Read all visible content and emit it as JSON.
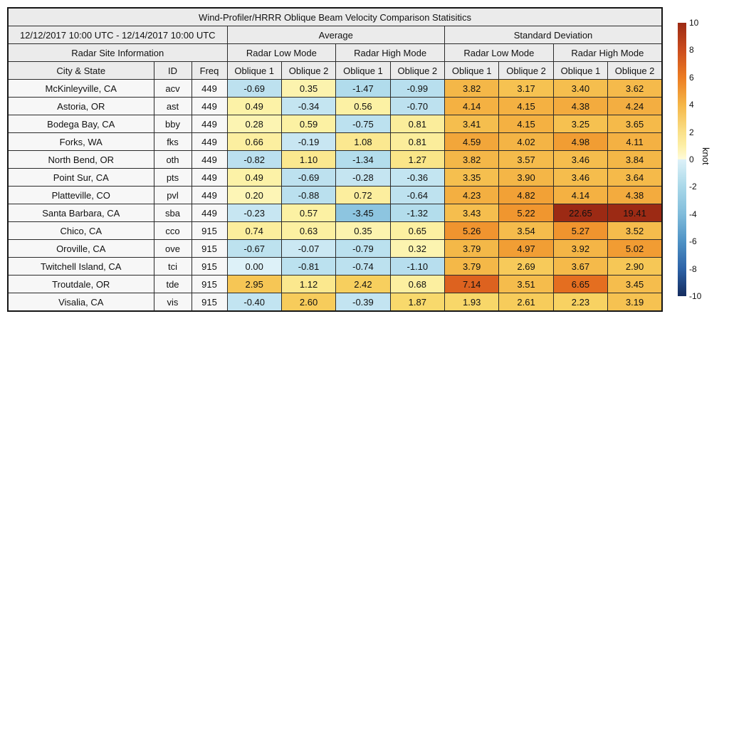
{
  "figure": {
    "title": "Wind-Profiler/HRRR Oblique Beam Velocity Comparison Statisitics",
    "header": {
      "date_range": "12/12/2017 10:00 UTC - 12/14/2017 10:00 UTC",
      "average": "Average",
      "std": "Standard Deviation",
      "site_info": "Radar Site Information",
      "modes": [
        "Radar Low Mode",
        "Radar High Mode",
        "Radar Low Mode",
        "Radar High Mode"
      ],
      "city": "City & State",
      "id": "ID",
      "freq": "Freq",
      "obliques": [
        "Oblique 1",
        "Oblique 2",
        "Oblique 1",
        "Oblique 2",
        "Oblique 1",
        "Oblique 2",
        "Oblique 1",
        "Oblique 2"
      ]
    },
    "rows": [
      {
        "city": "McKinleyville, CA",
        "id": "acv",
        "freq": "449",
        "values": [
          "-0.69",
          "0.35",
          "-1.47",
          "-0.99",
          "3.82",
          "3.17",
          "3.40",
          "3.62"
        ]
      },
      {
        "city": "Astoria, OR",
        "id": "ast",
        "freq": "449",
        "values": [
          "0.49",
          "-0.34",
          "0.56",
          "-0.70",
          "4.14",
          "4.15",
          "4.38",
          "4.24"
        ]
      },
      {
        "city": "Bodega Bay, CA",
        "id": "bby",
        "freq": "449",
        "values": [
          "0.28",
          "0.59",
          "-0.75",
          "0.81",
          "3.41",
          "4.15",
          "3.25",
          "3.65"
        ]
      },
      {
        "city": "Forks, WA",
        "id": "fks",
        "freq": "449",
        "values": [
          "0.66",
          "-0.19",
          "1.08",
          "0.81",
          "4.59",
          "4.02",
          "4.98",
          "4.11"
        ]
      },
      {
        "city": "North Bend, OR",
        "id": "oth",
        "freq": "449",
        "values": [
          "-0.82",
          "1.10",
          "-1.34",
          "1.27",
          "3.82",
          "3.57",
          "3.46",
          "3.84"
        ]
      },
      {
        "city": "Point Sur, CA",
        "id": "pts",
        "freq": "449",
        "values": [
          "0.49",
          "-0.69",
          "-0.28",
          "-0.36",
          "3.35",
          "3.90",
          "3.46",
          "3.64"
        ]
      },
      {
        "city": "Platteville, CO",
        "id": "pvl",
        "freq": "449",
        "values": [
          "0.20",
          "-0.88",
          "0.72",
          "-0.64",
          "4.23",
          "4.82",
          "4.14",
          "4.38"
        ]
      },
      {
        "city": "Santa Barbara, CA",
        "id": "sba",
        "freq": "449",
        "values": [
          "-0.23",
          "0.57",
          "-3.45",
          "-1.32",
          "3.43",
          "5.22",
          "22.65",
          "19.41"
        ]
      },
      {
        "city": "Chico, CA",
        "id": "cco",
        "freq": "915",
        "values": [
          "0.74",
          "0.63",
          "0.35",
          "0.65",
          "5.26",
          "3.54",
          "5.27",
          "3.52"
        ]
      },
      {
        "city": "Oroville, CA",
        "id": "ove",
        "freq": "915",
        "values": [
          "-0.67",
          "-0.07",
          "-0.79",
          "0.32",
          "3.79",
          "4.97",
          "3.92",
          "5.02"
        ]
      },
      {
        "city": "Twitchell Island, CA",
        "id": "tci",
        "freq": "915",
        "values": [
          "0.00",
          "-0.81",
          "-0.74",
          "-1.10",
          "3.79",
          "2.69",
          "3.67",
          "2.90"
        ]
      },
      {
        "city": "Troutdale, OR",
        "id": "tde",
        "freq": "915",
        "values": [
          "2.95",
          "1.12",
          "2.42",
          "0.68",
          "7.14",
          "3.51",
          "6.65",
          "3.45"
        ]
      },
      {
        "city": "Visalia, CA",
        "id": "vis",
        "freq": "915",
        "values": [
          "-0.40",
          "2.60",
          "-0.39",
          "1.87",
          "1.93",
          "2.61",
          "2.23",
          "3.19"
        ]
      }
    ]
  },
  "colorbar": {
    "unit": "knot",
    "ticks": [
      "10",
      "8",
      "6",
      "4",
      "2",
      "0",
      "-2",
      "-4",
      "-6",
      "-8",
      "-10"
    ],
    "min": -10,
    "max": 10
  },
  "colors": {
    "header_bg": "#ebebeb",
    "label_bg": "#f7f7f7",
    "border": "#161616",
    "text": "#111111",
    "cmap_stops": [
      [
        -10,
        "#1b2e63"
      ],
      [
        -8,
        "#2d63a8"
      ],
      [
        -6,
        "#4e92c5"
      ],
      [
        -4,
        "#80bcdb"
      ],
      [
        -3,
        "#97cce4"
      ],
      [
        -2,
        "#a9d8e9"
      ],
      [
        -1,
        "#b8dfee"
      ],
      [
        -0.5,
        "#c0e3f0"
      ],
      [
        -0.05,
        "#cbe8f3"
      ],
      [
        0,
        "#ddf1f8"
      ],
      [
        0.02,
        "#fdf6c0"
      ],
      [
        0.5,
        "#fcf2a6"
      ],
      [
        1,
        "#fbea94"
      ],
      [
        2,
        "#f8d666"
      ],
      [
        3,
        "#f6c554"
      ],
      [
        4,
        "#f4b445"
      ],
      [
        5,
        "#f19d33"
      ],
      [
        6,
        "#ec7c22"
      ],
      [
        7,
        "#e0661f"
      ],
      [
        8,
        "#cb4c1e"
      ],
      [
        10,
        "#9c2a14"
      ]
    ],
    "bar_stops": [
      [
        10,
        "#9c2a14"
      ],
      [
        8,
        "#cb4c1e"
      ],
      [
        6,
        "#ec7c22"
      ],
      [
        4,
        "#f5b647"
      ],
      [
        2,
        "#fae088"
      ],
      [
        1,
        "#fdefa6"
      ],
      [
        0.02,
        "#fffbd9"
      ],
      [
        0,
        "#ddf1f8"
      ],
      [
        -2,
        "#a9d8e9"
      ],
      [
        -4,
        "#80bcdb"
      ],
      [
        -6,
        "#4e92c5"
      ],
      [
        -8,
        "#2d63a8"
      ],
      [
        -10,
        "#142c5e"
      ]
    ]
  },
  "chart_data": {
    "type": "table",
    "title": "Wind-Profiler/HRRR Oblique Beam Velocity Comparison Statisitics",
    "subtitle": "12/12/2017 10:00 UTC - 12/14/2017 10:00 UTC",
    "value_unit": "knot",
    "colorbar": {
      "label": "knot",
      "range": [
        -10,
        10
      ],
      "ticks": [
        10,
        8,
        6,
        4,
        2,
        0,
        -2,
        -4,
        -6,
        -8,
        -10
      ]
    },
    "columns": [
      "city_state",
      "id",
      "freq_mhz",
      "avg_low_oblique1",
      "avg_low_oblique2",
      "avg_high_oblique1",
      "avg_high_oblique2",
      "std_low_oblique1",
      "std_low_oblique2",
      "std_high_oblique1",
      "std_high_oblique2"
    ],
    "rows": [
      [
        "McKinleyville, CA",
        "acv",
        449,
        -0.69,
        0.35,
        -1.47,
        -0.99,
        3.82,
        3.17,
        3.4,
        3.62
      ],
      [
        "Astoria, OR",
        "ast",
        449,
        0.49,
        -0.34,
        0.56,
        -0.7,
        4.14,
        4.15,
        4.38,
        4.24
      ],
      [
        "Bodega Bay, CA",
        "bby",
        449,
        0.28,
        0.59,
        -0.75,
        0.81,
        3.41,
        4.15,
        3.25,
        3.65
      ],
      [
        "Forks, WA",
        "fks",
        449,
        0.66,
        -0.19,
        1.08,
        0.81,
        4.59,
        4.02,
        4.98,
        4.11
      ],
      [
        "North Bend, OR",
        "oth",
        449,
        -0.82,
        1.1,
        -1.34,
        1.27,
        3.82,
        3.57,
        3.46,
        3.84
      ],
      [
        "Point Sur, CA",
        "pts",
        449,
        0.49,
        -0.69,
        -0.28,
        -0.36,
        3.35,
        3.9,
        3.46,
        3.64
      ],
      [
        "Platteville, CO",
        "pvl",
        449,
        0.2,
        -0.88,
        0.72,
        -0.64,
        4.23,
        4.82,
        4.14,
        4.38
      ],
      [
        "Santa Barbara, CA",
        "sba",
        449,
        -0.23,
        0.57,
        -3.45,
        -1.32,
        3.43,
        5.22,
        22.65,
        19.41
      ],
      [
        "Chico, CA",
        "cco",
        915,
        0.74,
        0.63,
        0.35,
        0.65,
        5.26,
        3.54,
        5.27,
        3.52
      ],
      [
        "Oroville, CA",
        "ove",
        915,
        -0.67,
        -0.07,
        -0.79,
        0.32,
        3.79,
        4.97,
        3.92,
        5.02
      ],
      [
        "Twitchell Island, CA",
        "tci",
        915,
        0.0,
        -0.81,
        -0.74,
        -1.1,
        3.79,
        2.69,
        3.67,
        2.9
      ],
      [
        "Troutdale, OR",
        "tde",
        915,
        2.95,
        1.12,
        2.42,
        0.68,
        7.14,
        3.51,
        6.65,
        3.45
      ],
      [
        "Visalia, CA",
        "vis",
        915,
        -0.4,
        2.6,
        -0.39,
        1.87,
        1.93,
        2.61,
        2.23,
        3.19
      ]
    ]
  }
}
